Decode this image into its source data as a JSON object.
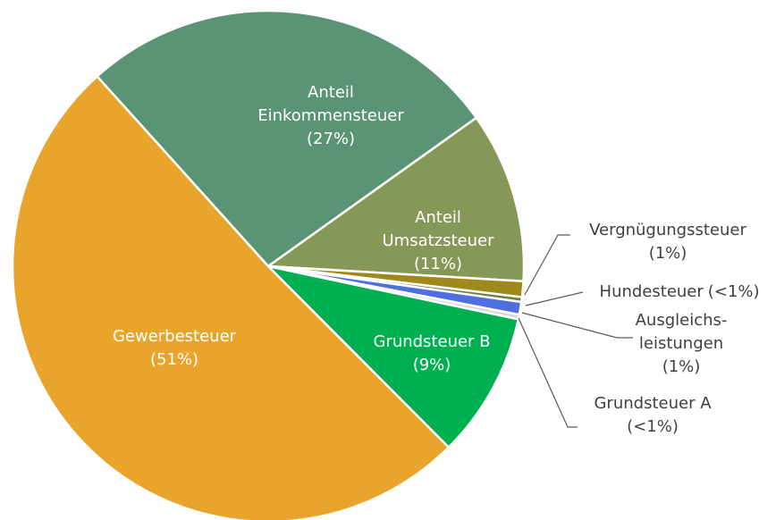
{
  "chart_data": {
    "type": "pie",
    "categories": [
      "Anteil\nEinkommensteuer",
      "Anteil\nUmsatzsteuer",
      "Vergnügungssteuer",
      "Hundesteuer",
      "Ausgleichs-\nleistungen",
      "Grundsteuer A",
      "Grundsteuer B",
      "Gewerbesteuer"
    ],
    "values": [
      26.8,
      10.8,
      1.0,
      0.3,
      0.8,
      0.3,
      9.2,
      50.8
    ],
    "value_labels": [
      "(27%)",
      "(11%)",
      "(1%)",
      "(<1%)",
      "(1%)",
      "(<1%)",
      "(9%)",
      "(51%)"
    ],
    "colors": [
      "#5b9475",
      "#869857",
      "#9e8a1c",
      "#6b7f3a",
      "#4f6ee0",
      "#d9d9d9",
      "#00b050",
      "#e9a42b"
    ]
  }
}
